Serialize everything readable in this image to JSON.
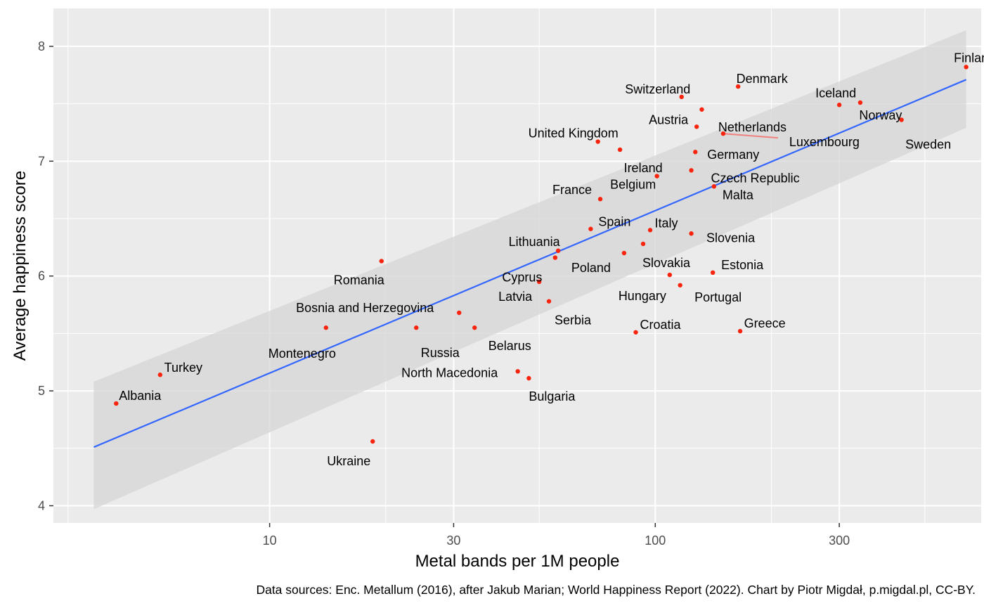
{
  "chart_data": {
    "type": "scatter",
    "xlabel": "Metal bands per 1M people",
    "ylabel": "Average happiness score",
    "caption": "Data sources: Enc. Metallum (2016), after Jakub Marian; World Happiness Report (2022). Chart by Piotr Migdał, p.migdal.pl, CC-BY.",
    "x_scale": "log10",
    "xlim": [
      2.75,
      700
    ],
    "ylim": [
      3.85,
      8.33
    ],
    "x_ticks": [
      10,
      30,
      100,
      300
    ],
    "x_tick_labels": [
      "10",
      "30",
      "100",
      "300"
    ],
    "x_minor_gridlines": [
      3,
      20,
      50,
      200,
      500
    ],
    "y_ticks": [
      4,
      5,
      6,
      7,
      8
    ],
    "y_tick_labels": [
      "4",
      "5",
      "6",
      "7",
      "8"
    ],
    "grid": true,
    "background": "#ebebeb",
    "colors": {
      "points": "#f8240e",
      "trend": "#3366ff",
      "band": "#d6d6d6",
      "segment": "#f08080"
    },
    "trend": {
      "x": [
        3.5,
        640
      ],
      "y": [
        4.51,
        7.71
      ],
      "band_lower": [
        3.97,
        7.29
      ],
      "band_upper": [
        5.08,
        8.14
      ]
    },
    "points": [
      {
        "name": "Finland",
        "x": 640,
        "y": 7.82
      },
      {
        "name": "Iceland",
        "x": 300,
        "y": 7.49
      },
      {
        "name": "Norway",
        "x": 340,
        "y": 7.51
      },
      {
        "name": "Sweden",
        "x": 435,
        "y": 7.36
      },
      {
        "name": "Denmark",
        "x": 164,
        "y": 7.65
      },
      {
        "name": "Switzerland",
        "x": 117,
        "y": 7.56
      },
      {
        "name": "Netherlands",
        "x": 132,
        "y": 7.45
      },
      {
        "name": "Austria",
        "x": 128,
        "y": 7.3
      },
      {
        "name": "Luxembourg",
        "x": 150,
        "y": 7.24
      },
      {
        "name": "Germany",
        "x": 127,
        "y": 7.08
      },
      {
        "name": "United Kingdom",
        "x": 71,
        "y": 7.17
      },
      {
        "name": "Ireland",
        "x": 81,
        "y": 7.1
      },
      {
        "name": "Czech Republic",
        "x": 124,
        "y": 6.92
      },
      {
        "name": "Malta",
        "x": 142,
        "y": 6.78
      },
      {
        "name": "France",
        "x": 72,
        "y": 6.67
      },
      {
        "name": "Belgium",
        "x": 101,
        "y": 6.87
      },
      {
        "name": "Spain",
        "x": 68,
        "y": 6.41
      },
      {
        "name": "Italy",
        "x": 97,
        "y": 6.4
      },
      {
        "name": "Slovenia",
        "x": 124,
        "y": 6.37
      },
      {
        "name": "Lithuania",
        "x": 56,
        "y": 6.22
      },
      {
        "name": "Slovakia",
        "x": 93,
        "y": 6.28
      },
      {
        "name": "Poland",
        "x": 83,
        "y": 6.2
      },
      {
        "name": "Cyprus",
        "x": 55,
        "y": 6.16
      },
      {
        "name": "Estonia",
        "x": 141,
        "y": 6.03
      },
      {
        "name": "Hungary",
        "x": 109,
        "y": 6.01
      },
      {
        "name": "Portugal",
        "x": 116,
        "y": 5.92
      },
      {
        "name": "Romania",
        "x": 19.5,
        "y": 6.13
      },
      {
        "name": "Latvia",
        "x": 50,
        "y": 5.95
      },
      {
        "name": "Serbia",
        "x": 53,
        "y": 5.78
      },
      {
        "name": "Bosnia and Herzegovina",
        "x": 31,
        "y": 5.68
      },
      {
        "name": "Montenegro",
        "x": 14,
        "y": 5.55
      },
      {
        "name": "Russia",
        "x": 24,
        "y": 5.55
      },
      {
        "name": "Belarus",
        "x": 34,
        "y": 5.55
      },
      {
        "name": "Croatia",
        "x": 89,
        "y": 5.51
      },
      {
        "name": "Greece",
        "x": 166,
        "y": 5.52
      },
      {
        "name": "North Macedonia",
        "x": 44,
        "y": 5.17
      },
      {
        "name": "Bulgaria",
        "x": 47,
        "y": 5.11
      },
      {
        "name": "Turkey",
        "x": 5.2,
        "y": 5.14
      },
      {
        "name": "Albania",
        "x": 4.0,
        "y": 4.89
      },
      {
        "name": "Ukraine",
        "x": 18.5,
        "y": 4.56
      }
    ]
  }
}
